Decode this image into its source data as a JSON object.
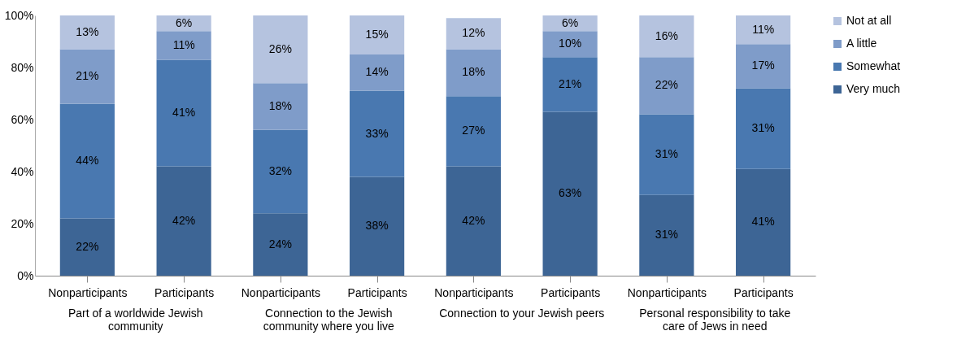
{
  "chart_data": {
    "type": "bar",
    "stacked": true,
    "legend": "right",
    "categories": [
      "Nonparticipants",
      "Participants",
      "Nonparticipants",
      "Participants",
      "Nonparticipants",
      "Participants",
      "Nonparticipants",
      "Participants"
    ],
    "annotations": [
      "Part of a worldwide Jewish community",
      "Connection to the Jewish community where you live",
      "Connection to your Jewish peers",
      "Personal responsibility to take care of Jews in need"
    ],
    "ylim": [
      0,
      100
    ],
    "yticks": [
      {
        "value": 0,
        "label": "0%"
      },
      {
        "value": 20,
        "label": "20%"
      },
      {
        "value": 40,
        "label": "40%"
      },
      {
        "value": 60,
        "label": "60%"
      },
      {
        "value": 80,
        "label": "80%"
      },
      {
        "value": 100,
        "label": "100%"
      }
    ],
    "series": [
      {
        "name": "Very much",
        "color": "#3d6595",
        "values": [
          22,
          42,
          24,
          38,
          42,
          63,
          31,
          41
        ],
        "value_labels": [
          "22%",
          "42%",
          "24%",
          "38%",
          "42%",
          "63%",
          "31%",
          "41%"
        ]
      },
      {
        "name": "Somewhat",
        "color": "#4978b0",
        "values": [
          44,
          41,
          32,
          33,
          27,
          21,
          31,
          31
        ],
        "value_labels": [
          "44%",
          "41%",
          "32%",
          "33%",
          "27%",
          "21%",
          "31%",
          "31%"
        ]
      },
      {
        "name": "A little",
        "color": "#7f9cc9",
        "values": [
          21,
          11,
          18,
          14,
          18,
          10,
          22,
          17
        ],
        "value_labels": [
          "21%",
          "11%",
          "18%",
          "14%",
          "18%",
          "10%",
          "22%",
          "17%"
        ]
      },
      {
        "name": "Not at all",
        "color": "#b5c3df",
        "values": [
          13,
          6,
          26,
          15,
          12,
          6,
          16,
          11
        ],
        "value_labels": [
          "13%",
          "6%",
          "26%",
          "15%",
          "12%",
          "6%",
          "16%",
          "11%"
        ]
      }
    ]
  }
}
